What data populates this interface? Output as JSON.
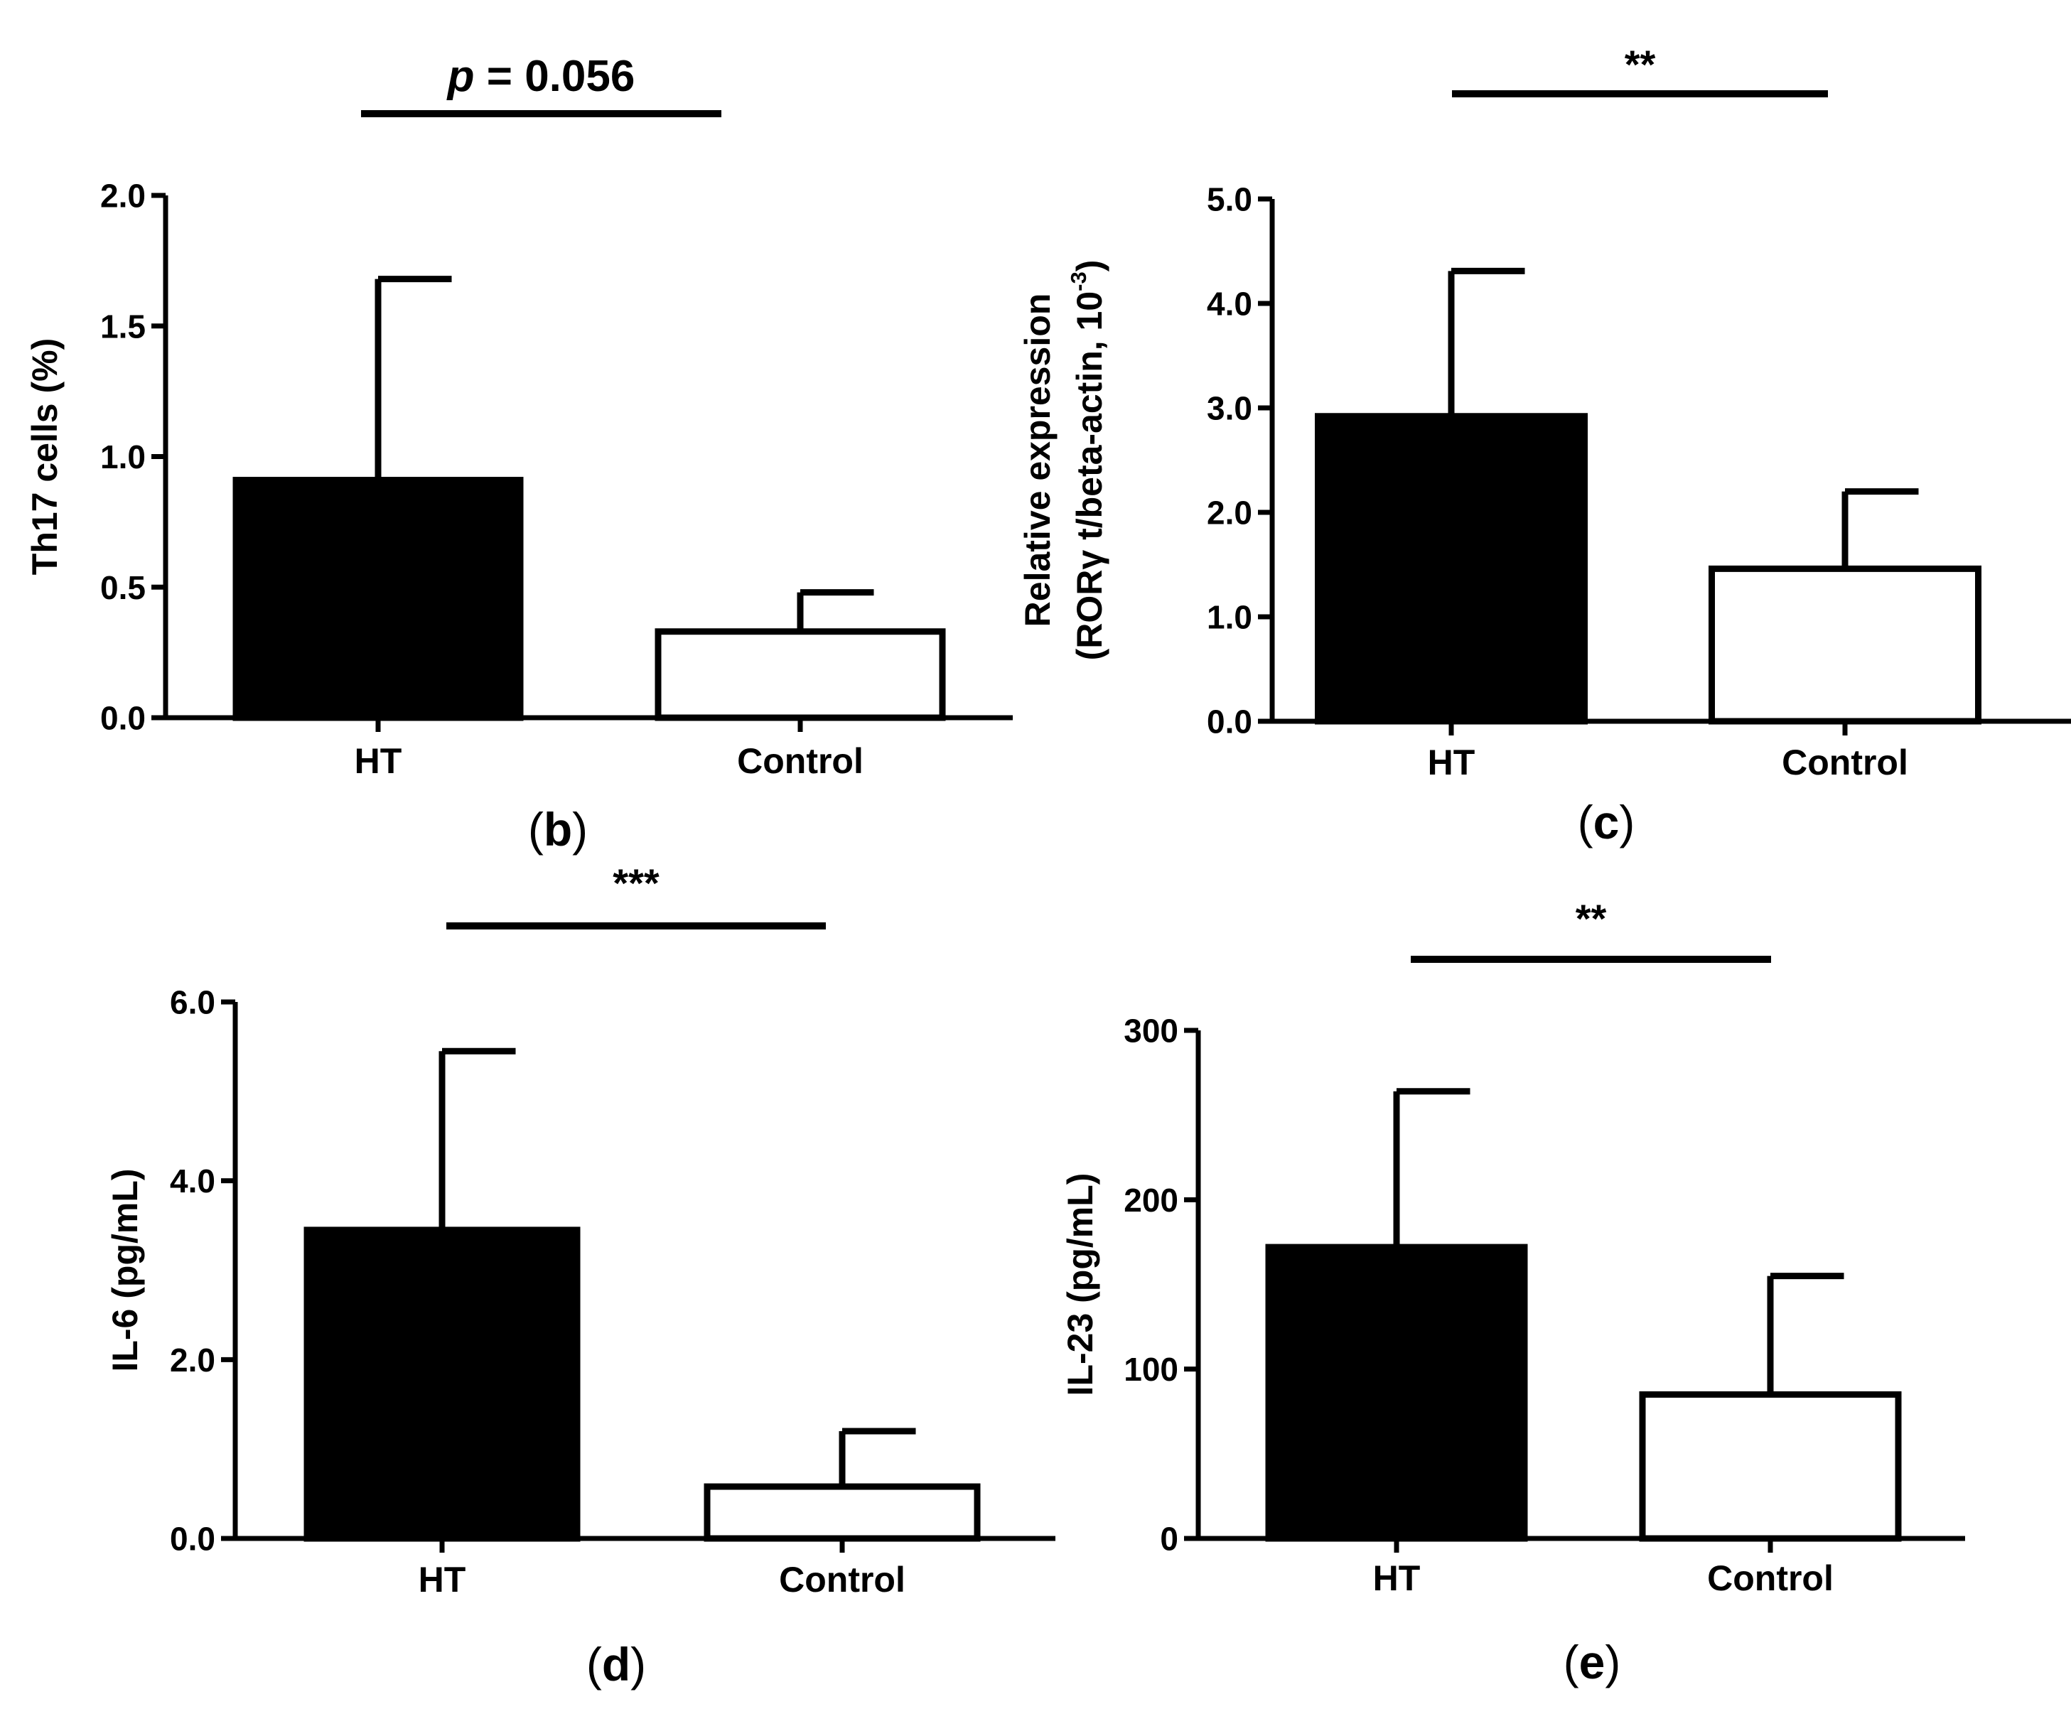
{
  "figure": {
    "bar_colors": [
      "#000000",
      "#ffffff"
    ]
  },
  "chart_data": [
    {
      "type": "bar",
      "panel_label": "b",
      "categories": [
        "HT",
        "Control"
      ],
      "values": [
        0.91,
        0.33
      ],
      "error_upper": [
        1.68,
        0.48
      ],
      "ylabel": "Th17 cells (%)",
      "ylim": [
        0,
        2.0
      ],
      "yticks": [
        0.0,
        0.5,
        1.0,
        1.5,
        2.0
      ],
      "ytick_labels": [
        "0.0",
        "0.5",
        "1.0",
        "1.5",
        "2.0"
      ],
      "significance": {
        "prefix": "p",
        "text": " = 0.056"
      }
    },
    {
      "type": "bar",
      "panel_label": "c",
      "categories": [
        "HT",
        "Control"
      ],
      "values": [
        2.92,
        1.46
      ],
      "error_upper": [
        4.31,
        2.2
      ],
      "ylabel": "Relative expression",
      "ylabel2_main": "(RORγ t/beta-actin, 10",
      "ylabel2_sup": "-3",
      "ylabel2_end": ")",
      "ylim": [
        0,
        5.0
      ],
      "yticks": [
        0.0,
        1.0,
        2.0,
        3.0,
        4.0,
        5.0
      ],
      "ytick_labels": [
        "0.0",
        "1.0",
        "2.0",
        "3.0",
        "4.0",
        "5.0"
      ],
      "significance": {
        "text": "**"
      }
    },
    {
      "type": "bar",
      "panel_label": "d",
      "categories": [
        "HT",
        "Control"
      ],
      "values": [
        3.45,
        0.58
      ],
      "error_upper": [
        5.45,
        1.2
      ],
      "ylabel": "IL-6 (pg/mL)",
      "ylim": [
        0,
        6.0
      ],
      "yticks": [
        0.0,
        2.0,
        4.0,
        6.0
      ],
      "ytick_labels": [
        "0.0",
        "2.0",
        "4.0",
        "6.0"
      ],
      "significance": {
        "text": "***"
      }
    },
    {
      "type": "bar",
      "panel_label": "e",
      "categories": [
        "HT",
        "Control"
      ],
      "values": [
        172,
        85
      ],
      "error_upper": [
        264,
        155
      ],
      "ylabel": "IL-23 (pg/mL)",
      "ylim": [
        0,
        300
      ],
      "yticks": [
        0,
        100,
        200,
        300
      ],
      "ytick_labels": [
        "0",
        "100",
        "200",
        "300"
      ],
      "significance": {
        "text": "**"
      }
    }
  ]
}
